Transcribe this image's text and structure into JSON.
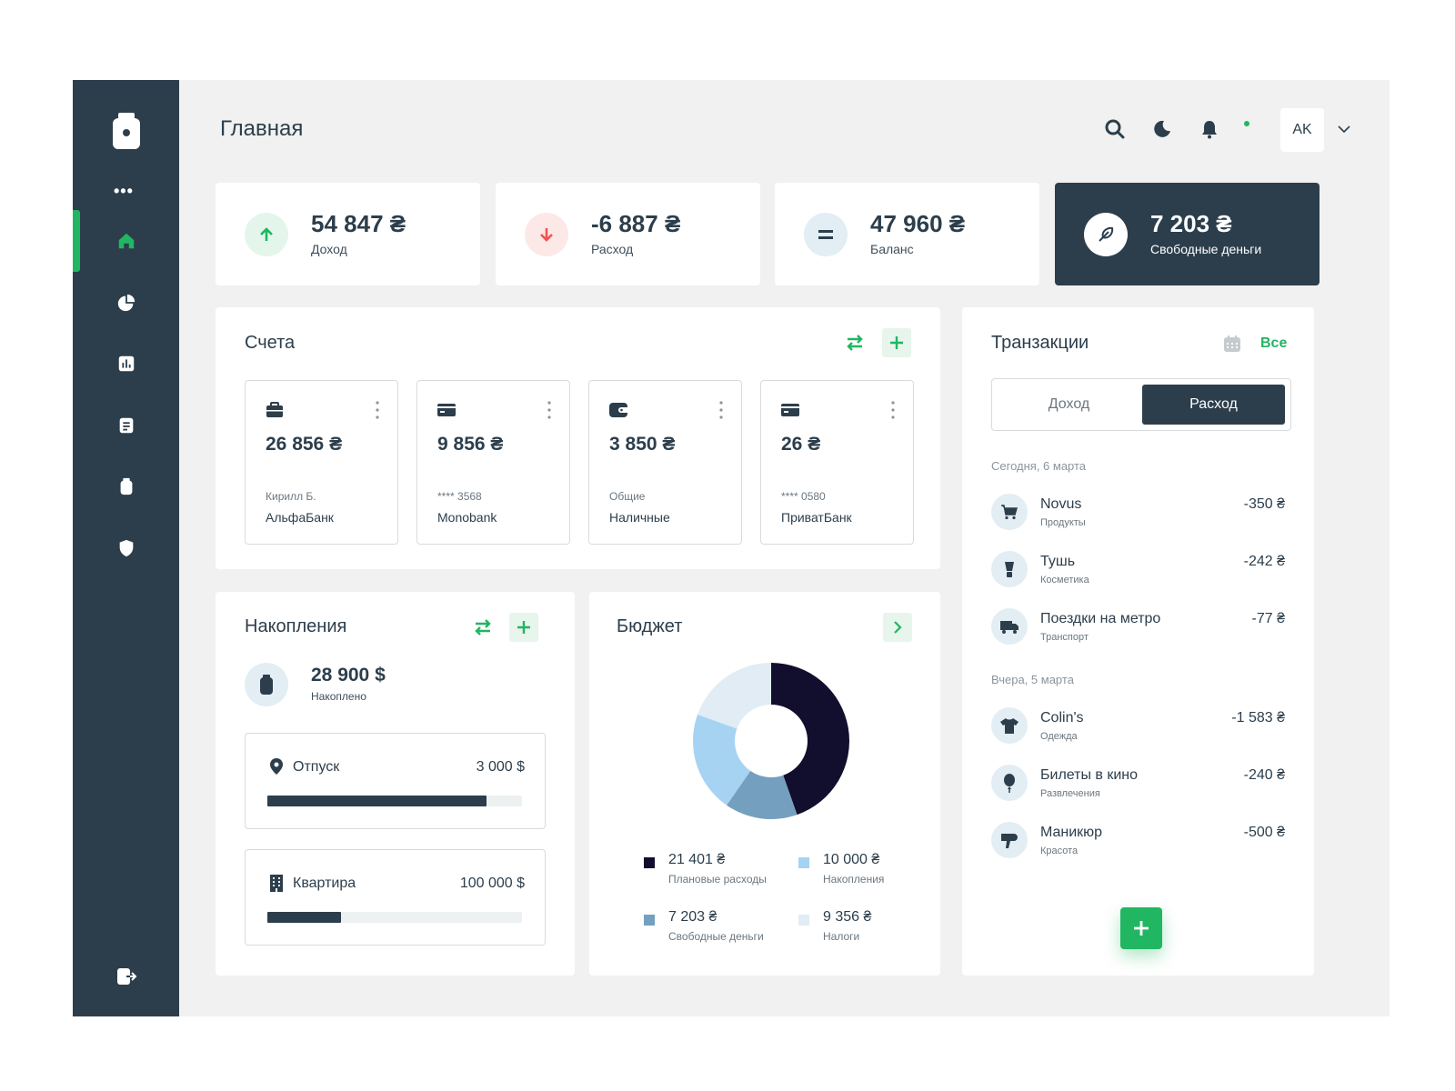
{
  "header": {
    "title": "Главная",
    "avatar_initials": "AK"
  },
  "colors": {
    "sidebar": "#2c3e4c",
    "accent": "#21b661",
    "background": "#f0f1f0",
    "income": "#21b661",
    "expense": "#ef5350"
  },
  "sidebar": {
    "items": [
      {
        "name": "home",
        "icon": "home-icon",
        "active": true
      },
      {
        "name": "analytics",
        "icon": "pie-chart-icon",
        "active": false
      },
      {
        "name": "reports",
        "icon": "bar-chart-icon",
        "active": false
      },
      {
        "name": "documents",
        "icon": "document-icon",
        "active": false
      },
      {
        "name": "savings",
        "icon": "jar-icon",
        "active": false
      },
      {
        "name": "security",
        "icon": "shield-icon",
        "active": false
      }
    ]
  },
  "stats": [
    {
      "value": "54 847 ₴",
      "label": "Доход",
      "icon": "arrow-up-icon"
    },
    {
      "value": "-6 887 ₴",
      "label": "Расход",
      "icon": "arrow-down-icon"
    },
    {
      "value": "47 960 ₴",
      "label": "Баланс",
      "icon": "equals-icon"
    },
    {
      "value": "7 203 ₴",
      "label": "Свободные деньги",
      "icon": "feather-icon"
    }
  ],
  "accounts": {
    "title": "Счета",
    "items": [
      {
        "amount": "26 856 ₴",
        "sub": "Кирилл Б.",
        "bank": "АльфаБанк",
        "icon": "briefcase-icon"
      },
      {
        "amount": "9 856 ₴",
        "sub": "**** 3568",
        "bank": "Monobank",
        "icon": "card-icon"
      },
      {
        "amount": "3 850 ₴",
        "sub": "Общие",
        "bank": "Наличные",
        "icon": "wallet-icon"
      },
      {
        "amount": "26 ₴",
        "sub": "**** 0580",
        "bank": "ПриватБанк",
        "icon": "card-icon"
      }
    ]
  },
  "savings": {
    "title": "Накопления",
    "amount": "28 900 $",
    "label": "Накоплено",
    "goals": [
      {
        "name": "Отпуск",
        "amount": "3 000 $",
        "progress": 0.86,
        "icon": "location-pin-icon"
      },
      {
        "name": "Квартира",
        "amount": "100 000 $",
        "progress": 0.29,
        "icon": "building-icon"
      }
    ]
  },
  "budget": {
    "title": "Бюджет",
    "legend": [
      {
        "value": "21 401 ₴",
        "label": "Плановые расходы",
        "color": "#120e2d"
      },
      {
        "value": "10 000 ₴",
        "label": "Накопления",
        "color": "#a6d3f2"
      },
      {
        "value": "7 203 ₴",
        "label": "Свободные деньги",
        "color": "#759fbe"
      },
      {
        "value": "9 356 ₴",
        "label": "Налоги",
        "color": "#e1ecf4"
      }
    ]
  },
  "chart_data": {
    "type": "pie",
    "categories": [
      "Плановые расходы",
      "Свободные деньги",
      "Накопления",
      "Налоги"
    ],
    "values": [
      21401,
      7203,
      10000,
      9356
    ],
    "colors": [
      "#120e2d",
      "#759fbe",
      "#a6d3f2",
      "#e1ecf4"
    ],
    "donut": true
  },
  "transactions": {
    "title": "Транзакции",
    "all_label": "Все",
    "tabs": {
      "income": "Доход",
      "expense": "Расход"
    },
    "groups": [
      {
        "date": "Сегодня, 6 марта",
        "items": [
          {
            "name": "Novus",
            "category": "Продукты",
            "amount": "-350 ₴",
            "icon": "cart-icon"
          },
          {
            "name": "Тушь",
            "category": "Косметика",
            "amount": "-242 ₴",
            "icon": "cosmetics-icon"
          },
          {
            "name": "Поездки на метро",
            "category": "Транспорт",
            "amount": "-77 ₴",
            "icon": "truck-icon"
          }
        ]
      },
      {
        "date": "Вчера, 5 марта",
        "items": [
          {
            "name": "Colin's",
            "category": "Одежда",
            "amount": "-1 583 ₴",
            "icon": "tshirt-icon"
          },
          {
            "name": "Билеты в кино",
            "category": "Развлечения",
            "amount": "-240 ₴",
            "icon": "balloon-icon"
          },
          {
            "name": "Маникюр",
            "category": "Красота",
            "amount": "-500 ₴",
            "icon": "hairdryer-icon"
          }
        ]
      }
    ]
  }
}
